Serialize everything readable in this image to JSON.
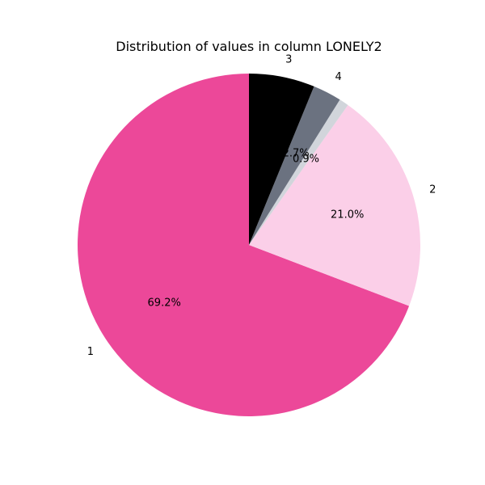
{
  "chart_data": {
    "type": "pie",
    "title": "Distribution of values in column LONELY2",
    "slices": [
      {
        "label": "1",
        "value": 69.2,
        "pct_label": "69.2%",
        "color": "#EC4899"
      },
      {
        "label": "2",
        "value": 21.0,
        "pct_label": "21.0%",
        "color": "#FBCFE8"
      },
      {
        "label": "",
        "value": 0.9,
        "pct_label": "0.9%",
        "color": "#D1D5DB"
      },
      {
        "label": "4",
        "value": 2.7,
        "pct_label": "2.7%",
        "color": "#6B7280"
      },
      {
        "label": "3",
        "value": 6.2,
        "pct_label": "",
        "color": "#000000"
      }
    ],
    "start_angle_deg": 90,
    "direction": "counterclockwise"
  }
}
